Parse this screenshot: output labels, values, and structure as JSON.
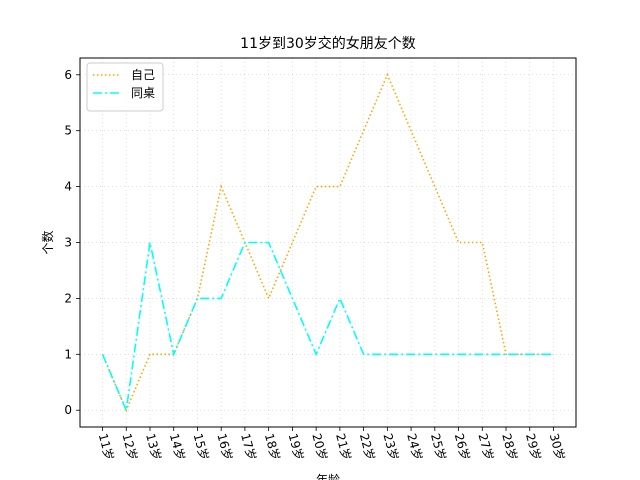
{
  "chart_data": {
    "type": "line",
    "title": "11岁到30岁交的女朋友个数",
    "xlabel": "年龄",
    "ylabel": "个数",
    "categories": [
      "11岁",
      "12岁",
      "13岁",
      "14岁",
      "15岁",
      "16岁",
      "17岁",
      "18岁",
      "19岁",
      "20岁",
      "21岁",
      "22岁",
      "23岁",
      "24岁",
      "25岁",
      "26岁",
      "27岁",
      "28岁",
      "29岁",
      "30岁"
    ],
    "ylim": [
      -0.3,
      6.3
    ],
    "yticks": [
      0,
      1,
      2,
      3,
      4,
      5,
      6
    ],
    "grid": true,
    "legend_position": "top-left",
    "series": [
      {
        "name": "自己",
        "color": "#ffa500",
        "style": "dotted",
        "values": [
          1,
          0,
          1,
          1,
          2,
          4,
          3,
          2,
          3,
          4,
          4,
          5,
          6,
          5,
          4,
          3,
          3,
          1,
          1,
          1
        ]
      },
      {
        "name": "同桌",
        "color": "#00ffff",
        "style": "dashdot",
        "values": [
          1,
          0,
          3,
          1,
          2,
          2,
          3,
          3,
          2,
          1,
          2,
          1,
          1,
          1,
          1,
          1,
          1,
          1,
          1,
          1
        ]
      }
    ]
  }
}
